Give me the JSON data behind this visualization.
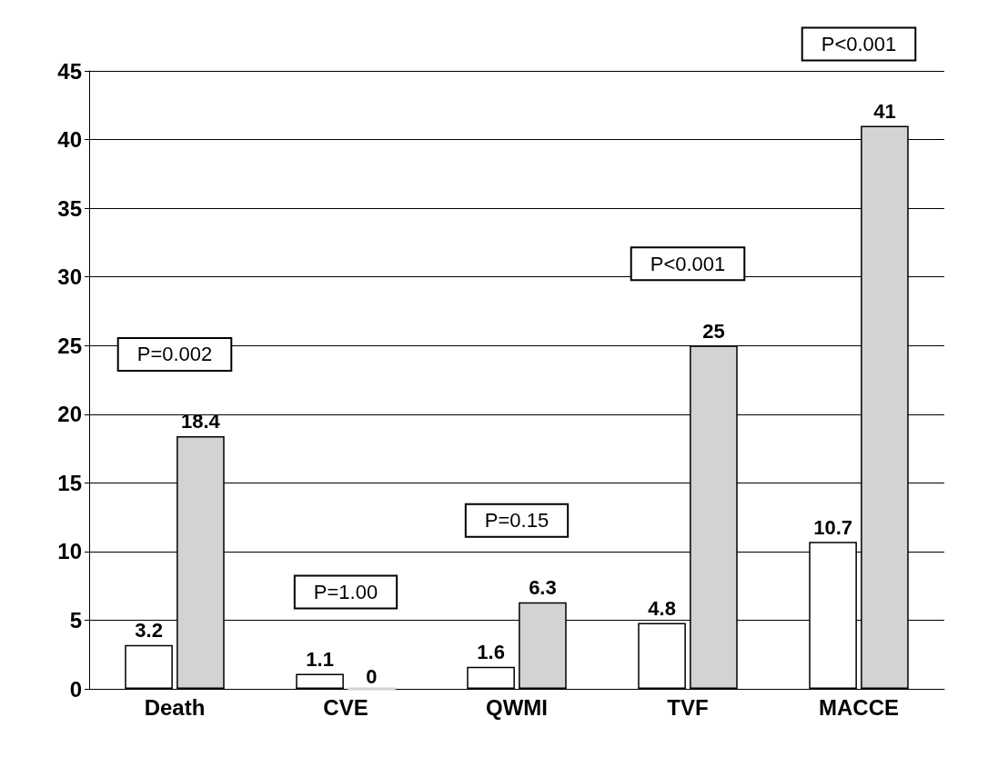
{
  "chart_data": {
    "type": "bar",
    "categories": [
      "Death",
      "CVE",
      "QWMI",
      "TVF",
      "MACCE"
    ],
    "series": [
      {
        "color": "#ffffff",
        "values": [
          3.2,
          1.1,
          1.6,
          4.8,
          10.7
        ]
      },
      {
        "color": "#d3d3d3",
        "values": [
          18.4,
          0,
          6.3,
          25,
          41
        ]
      }
    ],
    "ylim": [
      0,
      45
    ],
    "yticks": [
      0,
      5,
      10,
      15,
      20,
      25,
      30,
      35,
      40,
      45
    ],
    "grid": "y",
    "data_labels": true,
    "annotations": [
      "P=0.002",
      "P=1.00",
      "P=0.15",
      "P<0.001",
      "P<0.001"
    ]
  }
}
